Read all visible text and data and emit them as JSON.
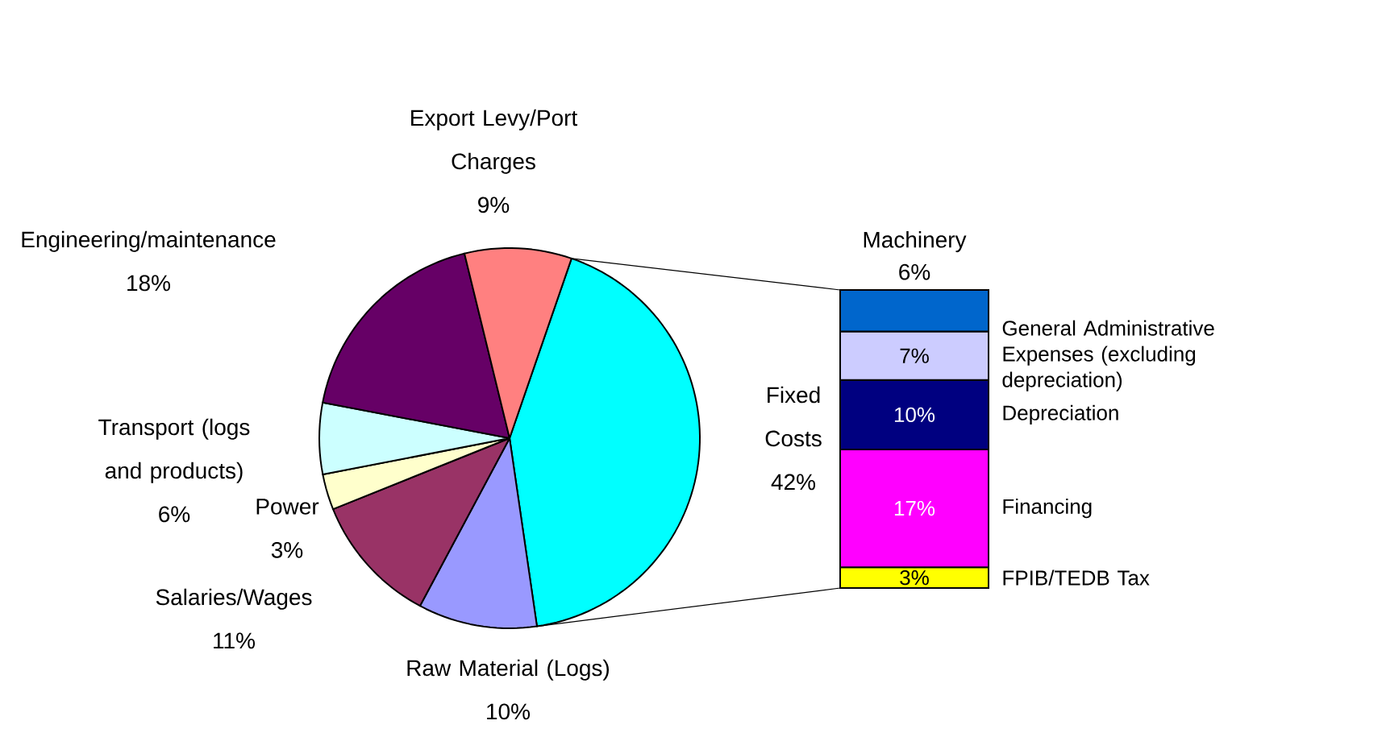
{
  "chart_data": [
    {
      "type": "pie",
      "categories": [
        "Fixed Costs",
        "Raw Material (Logs)",
        "Salaries/Wages",
        "Power",
        "Transport (logs and products)",
        "Engineering/maintenance",
        "Export Levy/Port Charges"
      ],
      "values": [
        42,
        10,
        11,
        3,
        6,
        18,
        9
      ],
      "value_labels": [
        "42%",
        "10%",
        "11%",
        "3%",
        "6%",
        "18%",
        "9%"
      ],
      "colors": [
        "#00ffff",
        "#9999ff",
        "#993366",
        "#ffffcc",
        "#ccffff",
        "#660066",
        "#ff8080"
      ]
    },
    {
      "type": "bar",
      "stacked": true,
      "categories": [
        null
      ],
      "series": [
        {
          "name": "FPIB/TEDB Tax",
          "color": "#ffff00",
          "values": [
            3
          ],
          "value_labels": [
            "3%"
          ]
        },
        {
          "name": "Financing",
          "color": "#ff00ff",
          "values": [
            17
          ],
          "value_labels": [
            "17%"
          ]
        },
        {
          "name": "Depreciation",
          "color": "#000080",
          "values": [
            10
          ],
          "value_labels": [
            "10%"
          ]
        },
        {
          "name": "General Administrative Expenses (excluding depreciation)",
          "color": "#ccccff",
          "values": [
            7
          ],
          "value_labels": [
            "7%"
          ]
        },
        {
          "name": "Machinery",
          "color": "#0066cc",
          "values": [
            6
          ],
          "value_labels": [
            "6%"
          ]
        }
      ]
    }
  ]
}
